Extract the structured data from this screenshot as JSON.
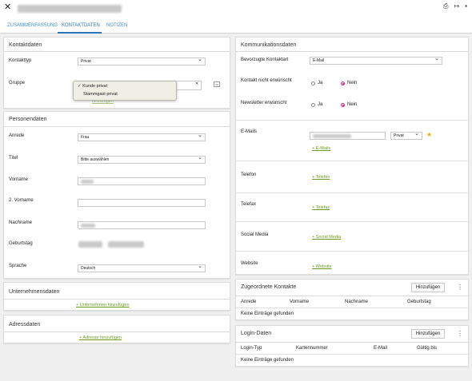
{
  "header": {
    "close_label": "✕",
    "icons": [
      "print-icon",
      "export-icon",
      "comment-icon"
    ],
    "print": "⎙",
    "export": "↦",
    "comment": "▪"
  },
  "tabs": [
    {
      "label": "ZUSAMMENFASSUNG"
    },
    {
      "label": "KONTAKTDATEN"
    },
    {
      "label": "NOTIZEN"
    }
  ],
  "kontaktdaten": {
    "title": "Kontaktdaten",
    "kontakttyp_label": "Kontakttyp",
    "kontakttyp_value": "Privat",
    "gruppe_label": "Gruppe",
    "gruppe_options": [
      "Kunde privat",
      "Stammgast privat"
    ],
    "gruppe_selected_mark": "✓",
    "gruppe_clear": "✕",
    "gruppe_add": "hinzufügen"
  },
  "personendaten": {
    "title": "Personendaten",
    "anrede_label": "Anrede",
    "anrede_value": "Frau",
    "titel_label": "Titel",
    "titel_value": "Bitte auswählen",
    "vorname_label": "Vorname",
    "zweiter_vorname_label": "2. Vorname",
    "nachname_label": "Nachname",
    "geburtstag_label": "Geburtstag",
    "sprache_label": "Sprache",
    "sprache_value": "Deutsch"
  },
  "unternehmensdaten": {
    "title": "Unternehmensdaten",
    "add_link": "+ Unternehmen hinzufügen"
  },
  "adressdaten": {
    "title": "Adressdaten",
    "add_link": "+ Adresse hinzufügen"
  },
  "kommunikation": {
    "title": "Kommunikationsdaten",
    "bevorzugte_label": "Bevorzugte Kontaktart",
    "bevorzugte_value": "E-Mail",
    "nicht_erwuenscht_label": "Kontakt nicht erwünscht",
    "newsletter_label": "Newsletter erwünscht",
    "ja": "Ja",
    "nein": "Nein",
    "emails_label": "E-Mails",
    "email_type": "Privat",
    "star": "★",
    "add_email": "+ E-Mails",
    "telefon_label": "Telefon",
    "add_telefon": "+ Telefon",
    "telefax_label": "Telefax",
    "add_telefax": "+ Telefax",
    "social_label": "Social Media",
    "add_social": "+ Social Media",
    "website_label": "Website",
    "add_website": "+ Website"
  },
  "zugeordnete": {
    "title": "Zugeordnete Kontakte",
    "add_button": "Hinzufügen",
    "menu": "⋮",
    "columns": [
      "Anrede",
      "Vorname",
      "Nachname",
      "Geburtstag"
    ],
    "empty": "Keine Einträge gefunden"
  },
  "login": {
    "title": "Login-Daten",
    "add_button": "Hinzufügen",
    "menu": "⋮",
    "columns": [
      "Login-Typ",
      "Kartennummer",
      "E-Mail",
      "Gültig bis"
    ],
    "empty": "Keine Einträge gefunden"
  }
}
